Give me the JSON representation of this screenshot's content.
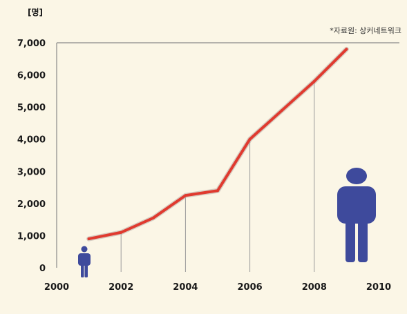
{
  "chart_data": {
    "type": "line",
    "unit_label": "[명]",
    "source_note": "*자료원: 상커네트워크",
    "x_ticks": [
      "2000",
      "2002",
      "2004",
      "2006",
      "2008",
      "2010"
    ],
    "y_ticks": [
      "0",
      "1,000",
      "2,000",
      "3,000",
      "4,000",
      "5,000",
      "6,000",
      "7,000"
    ],
    "xlim": [
      2000,
      2010
    ],
    "ylim": [
      0,
      7000
    ],
    "gridlines": "vertical drop lines at 2002, 2004, 2006, 2008",
    "series": [
      {
        "x": [
          2001,
          2002,
          2003,
          2004,
          2005,
          2006,
          2007,
          2008,
          2009
        ],
        "y": [
          900,
          1100,
          1550,
          2250,
          2400,
          4000,
          4900,
          5800,
          6800
        ],
        "color": "#e03a2f"
      }
    ],
    "icons": [
      "small-person-icon",
      "large-person-icon"
    ],
    "colors": {
      "line": "#e03a2f",
      "axis": "#8a8a8a",
      "person": "#3e4a9c",
      "background": "#fbf6e6"
    }
  }
}
